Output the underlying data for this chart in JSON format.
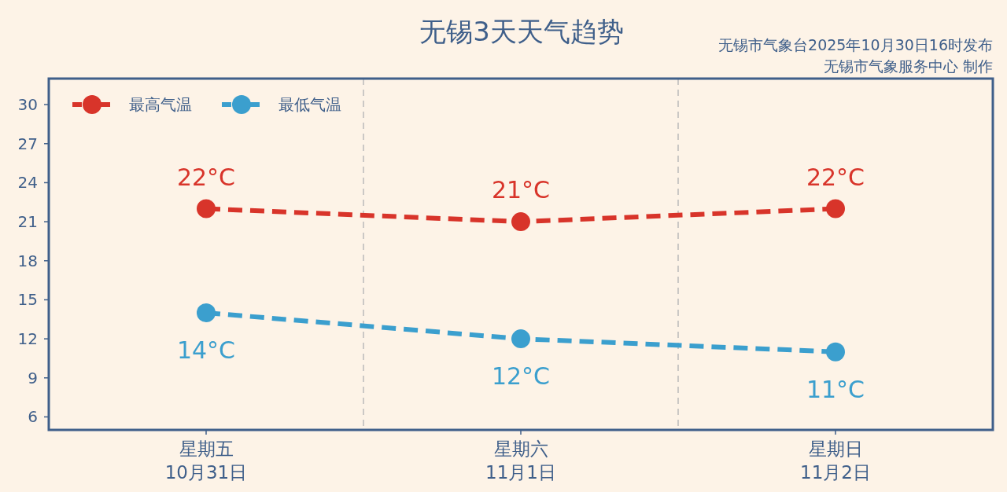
{
  "chart_data": {
    "type": "line",
    "title": "无锡3天天气趋势",
    "annotations": [
      "无锡市气象台2025年10月30日16时发布",
      "无锡市气象服务中心 制作"
    ],
    "categories": [
      "星期五\n10月31日",
      "星期六\n11月1日",
      "星期日\n11月2日"
    ],
    "series": [
      {
        "name": "最高气温",
        "color": "#d8342a",
        "values": [
          22,
          21,
          22
        ],
        "value_labels": [
          "22°C",
          "21°C",
          "22°C"
        ]
      },
      {
        "name": "最低气温",
        "color": "#3b9fce",
        "values": [
          14,
          12,
          11
        ],
        "value_labels": [
          "14°C",
          "12°C",
          "11°C"
        ]
      }
    ],
    "ylim": [
      5,
      32
    ],
    "yticks": [
      6,
      9,
      12,
      15,
      18,
      21,
      24,
      27,
      30
    ],
    "grid": "x",
    "legend": "top left",
    "marker": "circle",
    "line_style": "dashed"
  }
}
